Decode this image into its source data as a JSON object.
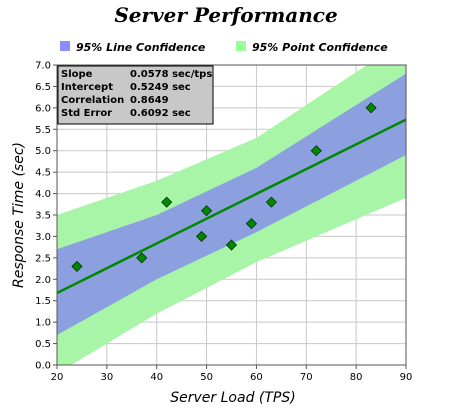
{
  "chart_data": {
    "type": "scatter",
    "title": "Server Performance",
    "xlabel": "Server Load (TPS)",
    "ylabel": "Response Time (sec)",
    "xlim": [
      20,
      90
    ],
    "ylim": [
      0,
      7
    ],
    "x_ticks": [
      20,
      30,
      40,
      50,
      60,
      70,
      80,
      90
    ],
    "y_ticks": [
      0.0,
      0.5,
      1.0,
      1.5,
      2.0,
      2.5,
      3.0,
      3.5,
      4.0,
      4.5,
      5.0,
      5.5,
      6.0,
      6.5,
      7.0
    ],
    "grid": true,
    "legend": [
      {
        "name": "95% Line Confidence",
        "color": "#8c8cff"
      },
      {
        "name": "95% Point Confidence",
        "color": "#99ff99"
      }
    ],
    "points": {
      "x": [
        24,
        37,
        42,
        49,
        50,
        55,
        59,
        63,
        72,
        83
      ],
      "y": [
        2.3,
        2.5,
        3.8,
        3.0,
        3.6,
        2.8,
        3.3,
        3.8,
        5.0,
        6.0
      ],
      "color": "#008800"
    },
    "trendline": {
      "slope": 0.0578,
      "intercept": 0.5249,
      "color": "#008800"
    },
    "line_confidence_band": {
      "x": [
        20,
        40,
        60,
        90
      ],
      "lower": [
        0.7,
        2.0,
        3.1,
        4.9
      ],
      "upper": [
        2.7,
        3.5,
        4.6,
        6.8
      ],
      "color": "#8ca0e0"
    },
    "point_confidence_band": {
      "x": [
        20,
        40,
        60,
        90
      ],
      "lower": [
        -0.2,
        1.2,
        2.4,
        3.9
      ],
      "upper": [
        3.5,
        4.3,
        5.3,
        7.6
      ],
      "color": "#a8f5a8"
    },
    "stats": [
      {
        "label": "Slope",
        "value": "0.0578 sec/tps"
      },
      {
        "label": "Intercept",
        "value": "0.5249 sec"
      },
      {
        "label": "Correlation",
        "value": "0.8649"
      },
      {
        "label": "Std Error",
        "value": "0.6092 sec"
      }
    ]
  }
}
